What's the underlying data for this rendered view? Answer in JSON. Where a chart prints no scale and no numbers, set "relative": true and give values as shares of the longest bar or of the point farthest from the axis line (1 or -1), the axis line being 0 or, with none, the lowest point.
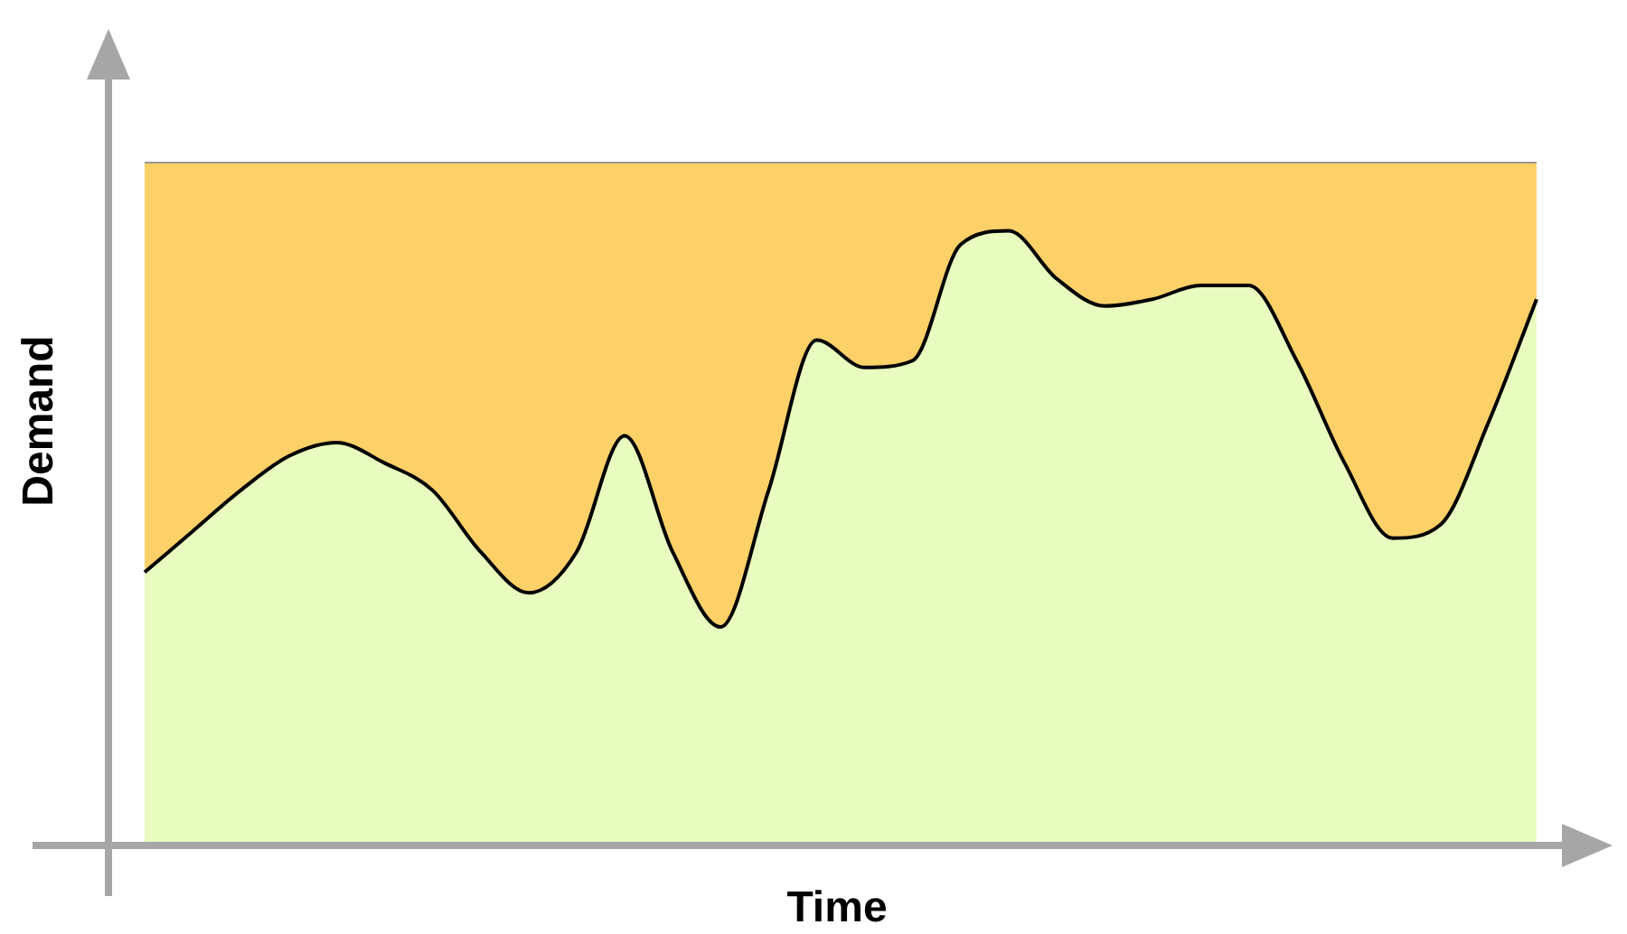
{
  "chart_data": {
    "type": "area",
    "xlabel": "Time",
    "ylabel": "Demand",
    "relative": true,
    "categories": [
      null,
      null,
      null,
      null,
      null,
      null,
      null,
      null,
      null,
      null,
      null,
      null,
      null,
      null,
      null,
      null,
      null,
      null,
      null,
      null,
      null,
      null,
      null,
      null,
      null,
      null,
      null,
      null,
      null,
      null
    ],
    "series": [
      {
        "color": "#fdd068",
        "values": [
          1,
          1,
          1,
          1,
          1,
          1,
          1,
          1,
          1,
          1,
          1,
          1,
          1,
          1,
          1,
          1,
          1,
          1,
          1,
          1,
          1,
          1,
          1,
          1,
          1,
          1,
          1,
          1,
          1,
          1
        ]
      },
      {
        "color": "#e8fcc0",
        "values": [
          0.4,
          0.46,
          0.52,
          0.57,
          0.59,
          0.56,
          0.52,
          0.43,
          0.37,
          0.43,
          0.6,
          0.43,
          0.32,
          0.52,
          0.74,
          0.7,
          0.71,
          0.88,
          0.9,
          0.83,
          0.79,
          0.8,
          0.82,
          0.82,
          0.71,
          0.56,
          0.45,
          0.47,
          0.62,
          0.8
        ]
      }
    ],
    "legend": false
  }
}
